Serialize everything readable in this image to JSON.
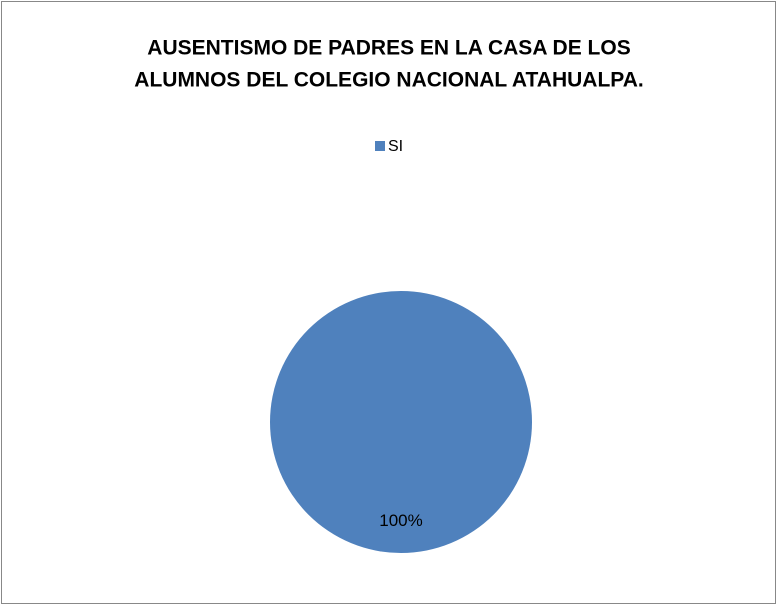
{
  "chart_data": {
    "type": "pie",
    "title": [
      "AUSENTISMO DE PADRES EN LA CASA DE LOS",
      "ALUMNOS DEL COLEGIO NACIONAL ATAHUALPA."
    ],
    "categories": [
      "SI"
    ],
    "values": [
      100
    ],
    "value_labels": [
      "100%"
    ],
    "colors": [
      "#4f81bd"
    ],
    "legend": "top"
  }
}
